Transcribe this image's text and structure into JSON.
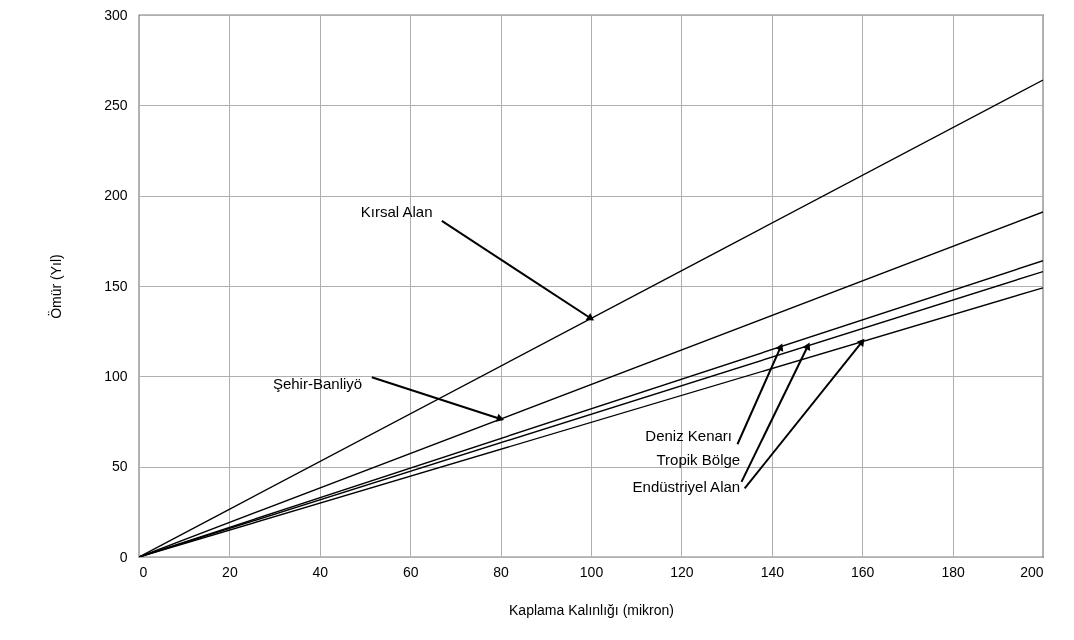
{
  "chart_data": {
    "type": "line",
    "xlabel": "Kaplama Kalınlığı (mikron)",
    "ylabel": "Ömür (Yıl)",
    "x": [
      0,
      200
    ],
    "series": [
      {
        "color": "#000000",
        "values": [
          0,
          264
        ]
      },
      {
        "color": "#000000",
        "values": [
          0,
          191
        ]
      },
      {
        "color": "#000000",
        "values": [
          0,
          164
        ]
      },
      {
        "color": "#000000",
        "values": [
          0,
          158
        ]
      },
      {
        "color": "#000000",
        "values": [
          0,
          149
        ]
      }
    ],
    "xlim": [
      0,
      200
    ],
    "xticks": [
      0,
      20,
      40,
      60,
      80,
      100,
      120,
      140,
      160,
      180,
      200
    ],
    "ylim": [
      0,
      300
    ],
    "yticks": [
      0,
      50,
      100,
      150,
      200,
      250,
      300
    ],
    "grid": true,
    "legend": false,
    "marker": "none",
    "line_style": "solid",
    "annotations": [
      {
        "text": "Kırsal Alan",
        "x": 100,
        "y": 132
      },
      {
        "text": "Şehir-Banliyö",
        "x": 80,
        "y": 76.4
      },
      {
        "text": "Deniz Kenarı",
        "x": 142,
        "y": 116.4
      },
      {
        "text": "Tropik Bölge",
        "x": 148,
        "y": 116.9
      },
      {
        "text": "Endüstriyel Alan",
        "x": 160,
        "y": 119.2
      }
    ]
  }
}
